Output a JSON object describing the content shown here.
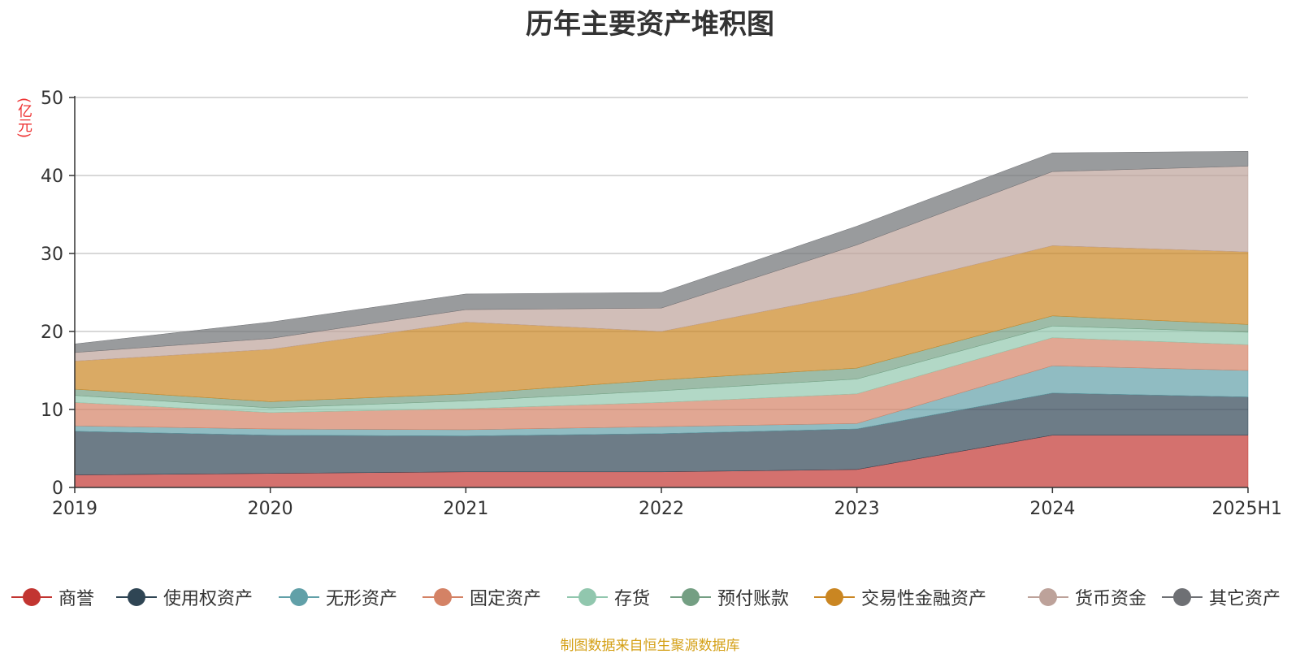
{
  "chart_data": {
    "type": "area",
    "stacked": true,
    "title": "历年主要资产堆积图",
    "ylabel": "(亿元)",
    "xlabel": "",
    "categories": [
      "2019",
      "2020",
      "2021",
      "2022",
      "2023",
      "2024",
      "2025H1"
    ],
    "ylim": [
      0,
      50
    ],
    "yticks": [
      0,
      10,
      20,
      30,
      40,
      50
    ],
    "grid": true,
    "legend_position": "bottom",
    "series": [
      {
        "name": "商誉",
        "color": "#c23531",
        "values": [
          1.6,
          1.8,
          2.0,
          2.0,
          2.3,
          6.7,
          6.7
        ]
      },
      {
        "name": "使用权资产",
        "color": "#2f4554",
        "values": [
          5.6,
          4.9,
          4.6,
          4.9,
          5.2,
          5.4,
          4.9
        ]
      },
      {
        "name": "无形资产",
        "color": "#61a0a8",
        "values": [
          0.7,
          0.8,
          0.8,
          0.9,
          0.7,
          3.5,
          3.4
        ]
      },
      {
        "name": "固定资产",
        "color": "#d48265",
        "values": [
          3.0,
          2.1,
          2.7,
          3.1,
          3.8,
          3.6,
          3.3
        ]
      },
      {
        "name": "存货",
        "color": "#91c7ae",
        "values": [
          0.9,
          0.6,
          1.0,
          1.5,
          1.9,
          1.5,
          1.6
        ]
      },
      {
        "name": "预付账款",
        "color": "#749f83",
        "values": [
          0.8,
          0.8,
          0.9,
          1.4,
          1.4,
          1.3,
          1.0
        ]
      },
      {
        "name": "交易性金融资产",
        "color": "#ca8622",
        "values": [
          3.6,
          6.7,
          9.2,
          6.2,
          9.6,
          9.0,
          9.3
        ]
      },
      {
        "name": "货币资金",
        "color": "#bda29a",
        "values": [
          1.1,
          1.4,
          1.6,
          3.0,
          6.2,
          9.5,
          11.0
        ]
      },
      {
        "name": "其它资产",
        "color": "#6e7074",
        "values": [
          1.1,
          2.1,
          2.0,
          2.0,
          2.4,
          2.4,
          1.9
        ]
      }
    ]
  },
  "footer": "制图数据来自恒生聚源数据库"
}
